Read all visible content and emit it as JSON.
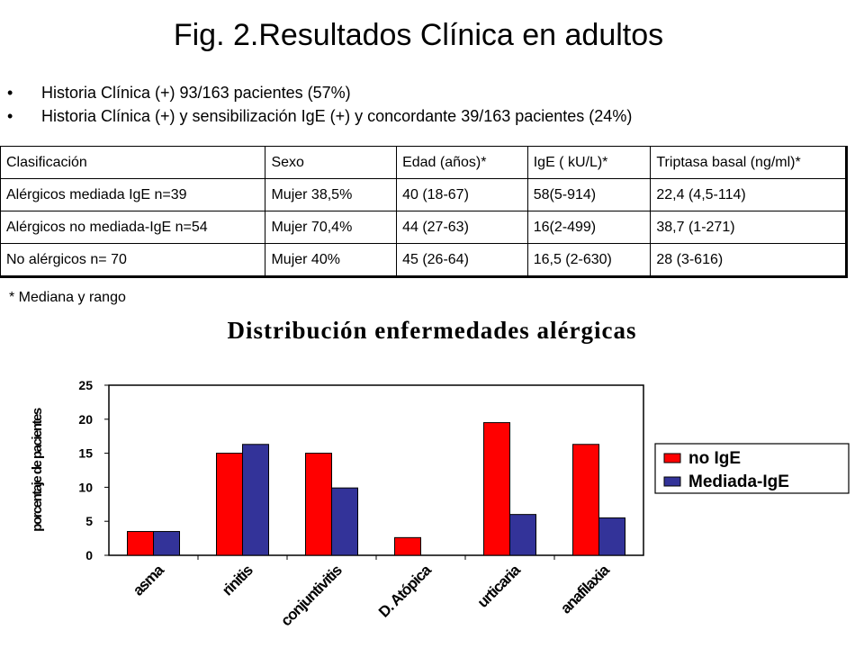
{
  "slide": {
    "title": "Fig. 2.Resultados Clínica en adultos",
    "bullets": [
      "Historia Clínica  (+) 93/163 pacientes  (57%)",
      "Historia  Clínica (+) y sensibilización IgE (+) y concordante  39/163  pacientes (24%)"
    ],
    "bullet_glyph": "•",
    "note": "* Mediana y rango"
  },
  "table": {
    "headers": [
      "Clasificación",
      "Sexo",
      "Edad (años)*",
      "IgE ( kU/L)*",
      "Triptasa basal (ng/ml)*"
    ],
    "rows": [
      [
        "Alérgicos mediada IgE  n=39",
        "Mujer  38,5%",
        "40 (18-67)",
        "58(5-914)",
        "22,4 (4,5-114)"
      ],
      [
        "Alérgicos no mediada-IgE n=54",
        "Mujer  70,4%",
        "44 (27-63)",
        "16(2-499)",
        "38,7 (1-271)"
      ],
      [
        "No alérgicos n= 70",
        "Mujer  40%",
        "45 (26-64)",
        "16,5 (2-630)",
        "28 (3-616)"
      ]
    ]
  },
  "chart_data": {
    "type": "bar",
    "title": "Distribución enfermedades alérgicas",
    "ylabel": "porcentaje de pacientes",
    "xlabel": "",
    "categories": [
      "asma",
      "rinitis",
      "conjuntivitis",
      "D. Atópica",
      "urticaria",
      "anafilaxia"
    ],
    "series": [
      {
        "name": "no IgE",
        "color": "#ff0000",
        "values": [
          3.5,
          15,
          15,
          2.6,
          19.5,
          16.3
        ]
      },
      {
        "name": "Mediada-IgE",
        "color": "#333399",
        "values": [
          3.5,
          16.3,
          9.9,
          0,
          6,
          5.5
        ]
      }
    ],
    "ylim": [
      0,
      25
    ],
    "yticks": [
      "0",
      "5",
      "10",
      "15",
      "20",
      "25"
    ],
    "grid": false,
    "legend": "right"
  }
}
